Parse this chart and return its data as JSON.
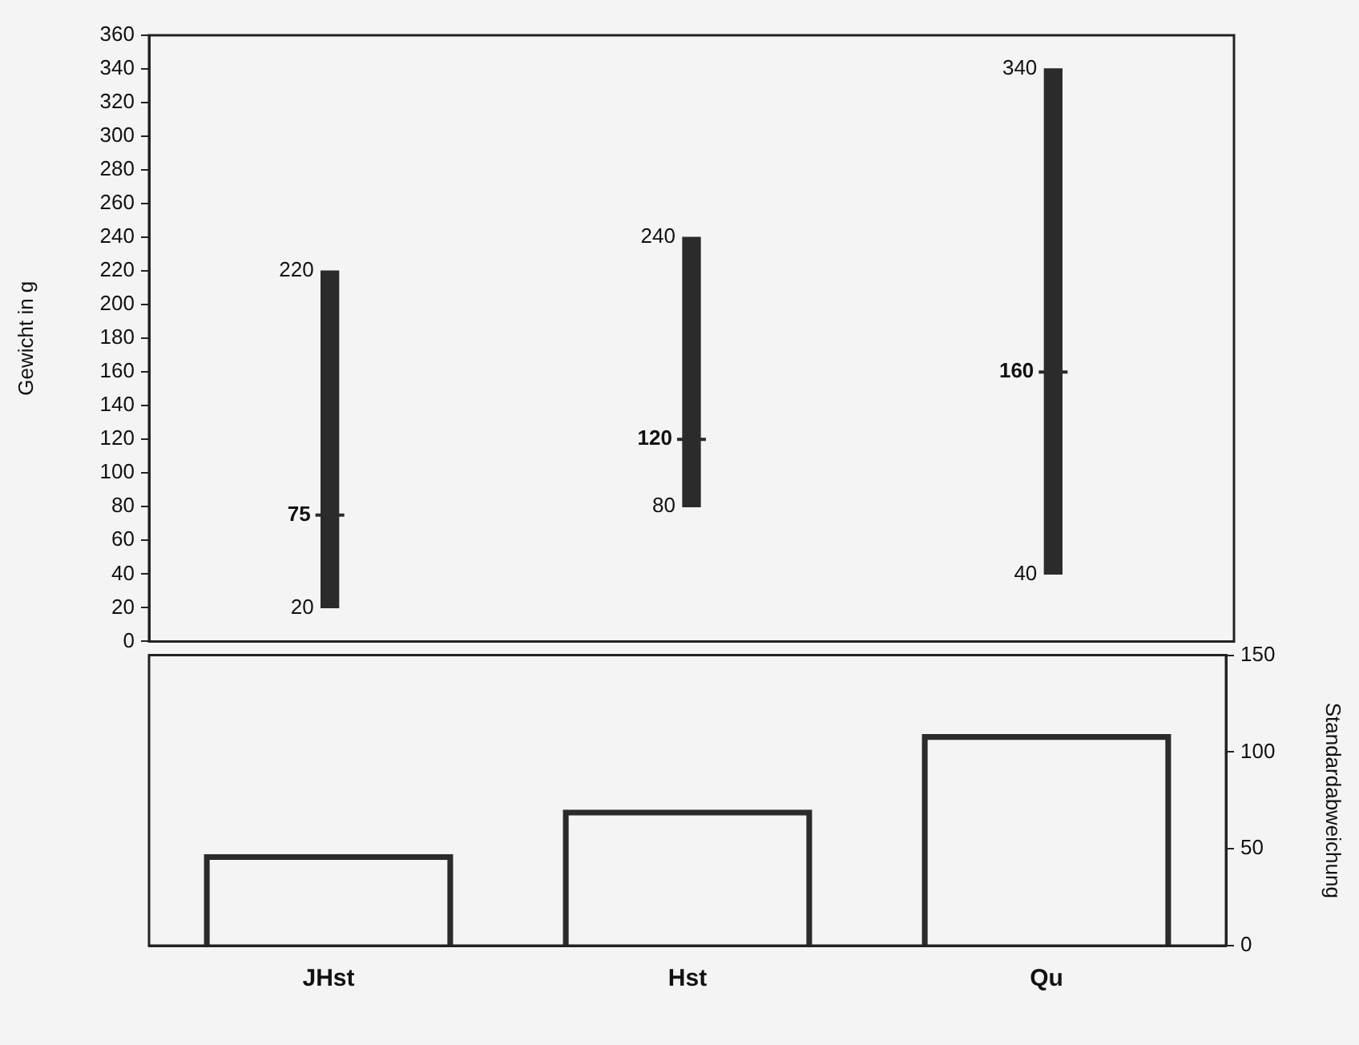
{
  "chart_data": [
    {
      "type": "bar",
      "ylabel": "Gewicht in g",
      "categories": [
        "JHst",
        "Hst",
        "Qu"
      ],
      "series": [
        {
          "color": "#2b2b2b",
          "base": [
            20,
            80,
            40
          ],
          "values": [
            200,
            160,
            300
          ]
        },
        {
          "type": "scatter",
          "color": "#2b2b2b",
          "marker": "cross",
          "values": [
            75,
            120,
            160
          ],
          "value_labels": [
            "75",
            "120",
            "160"
          ]
        }
      ],
      "annotations": [
        {
          "text": "220",
          "x": "JHst",
          "y": 220
        },
        {
          "text": "20",
          "x": "JHst",
          "y": 20
        },
        {
          "text": "240",
          "x": "Hst",
          "y": 240
        },
        {
          "text": "80",
          "x": "Hst",
          "y": 80
        },
        {
          "text": "340",
          "x": "Qu",
          "y": 340
        },
        {
          "text": "40",
          "x": "Qu",
          "y": 40
        }
      ],
      "ylim": [
        0,
        360
      ],
      "yticks": [
        0,
        20,
        40,
        60,
        80,
        100,
        120,
        140,
        160,
        180,
        200,
        220,
        240,
        260,
        280,
        300,
        320,
        340,
        360
      ],
      "tick_labels": "y",
      "grid": false,
      "legend": false
    },
    {
      "type": "bar",
      "y2label": "Standardabweichung",
      "categories": [
        "JHst",
        "Hst",
        "Qu"
      ],
      "series": [
        {
          "color": "#2b2b2b",
          "axis": "y2",
          "values": [
            47,
            70,
            109
          ]
        }
      ],
      "y2lim": [
        0,
        150
      ],
      "y2ticks": [
        0,
        50,
        100,
        150
      ],
      "grid": false,
      "legend": false
    }
  ]
}
